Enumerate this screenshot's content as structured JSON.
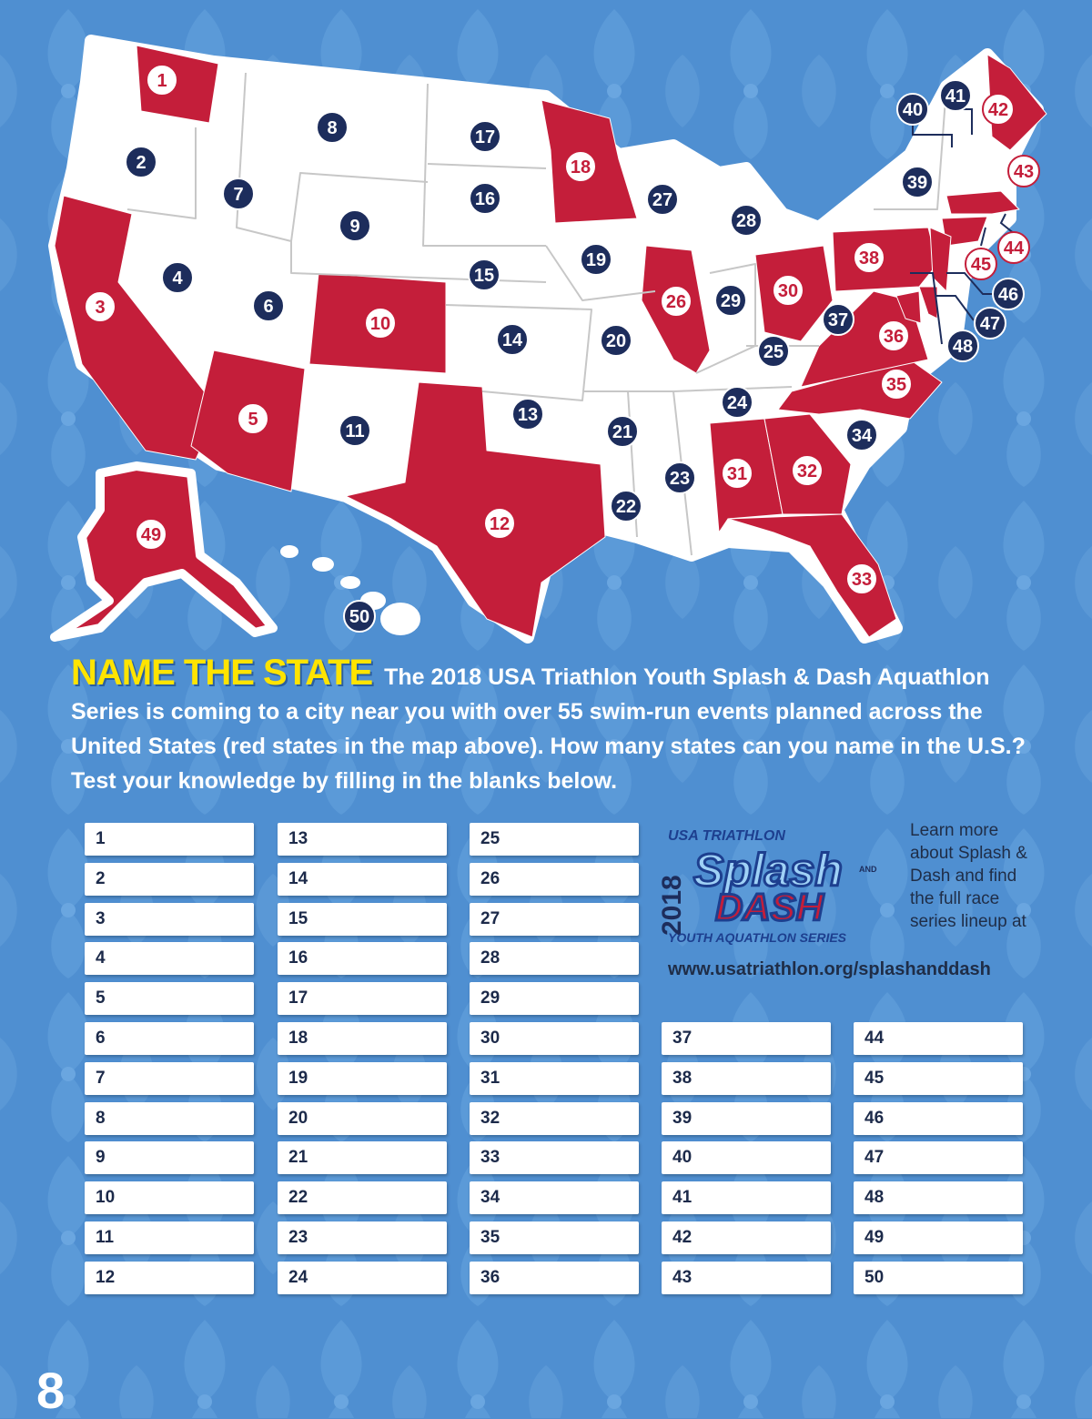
{
  "colors": {
    "background": "#4f8fd1",
    "red_state": "#c41e3a",
    "white_state": "#ffffff",
    "marker_dark": "#1d2d5c",
    "headline": "#ffe400"
  },
  "map": {
    "markers": [
      {
        "n": "1",
        "type": "red"
      },
      {
        "n": "2",
        "type": "white"
      },
      {
        "n": "3",
        "type": "red"
      },
      {
        "n": "4",
        "type": "white"
      },
      {
        "n": "5",
        "type": "red"
      },
      {
        "n": "6",
        "type": "white"
      },
      {
        "n": "7",
        "type": "white"
      },
      {
        "n": "8",
        "type": "white"
      },
      {
        "n": "9",
        "type": "white"
      },
      {
        "n": "10",
        "type": "red"
      },
      {
        "n": "11",
        "type": "white"
      },
      {
        "n": "12",
        "type": "red"
      },
      {
        "n": "13",
        "type": "white"
      },
      {
        "n": "14",
        "type": "white"
      },
      {
        "n": "15",
        "type": "white"
      },
      {
        "n": "16",
        "type": "white"
      },
      {
        "n": "17",
        "type": "white"
      },
      {
        "n": "18",
        "type": "red"
      },
      {
        "n": "19",
        "type": "white"
      },
      {
        "n": "20",
        "type": "white"
      },
      {
        "n": "21",
        "type": "white"
      },
      {
        "n": "22",
        "type": "white"
      },
      {
        "n": "23",
        "type": "white"
      },
      {
        "n": "24",
        "type": "white"
      },
      {
        "n": "25",
        "type": "white"
      },
      {
        "n": "26",
        "type": "red"
      },
      {
        "n": "27",
        "type": "white"
      },
      {
        "n": "28",
        "type": "white"
      },
      {
        "n": "29",
        "type": "white"
      },
      {
        "n": "30",
        "type": "red"
      },
      {
        "n": "31",
        "type": "red"
      },
      {
        "n": "32",
        "type": "red"
      },
      {
        "n": "33",
        "type": "red"
      },
      {
        "n": "34",
        "type": "white"
      },
      {
        "n": "35",
        "type": "red"
      },
      {
        "n": "36",
        "type": "red"
      },
      {
        "n": "37",
        "type": "white"
      },
      {
        "n": "38",
        "type": "red"
      },
      {
        "n": "39",
        "type": "white"
      },
      {
        "n": "40",
        "type": "white"
      },
      {
        "n": "41",
        "type": "white"
      },
      {
        "n": "42",
        "type": "red"
      },
      {
        "n": "43",
        "type": "red"
      },
      {
        "n": "44",
        "type": "red"
      },
      {
        "n": "45",
        "type": "red"
      },
      {
        "n": "46",
        "type": "white"
      },
      {
        "n": "47",
        "type": "white"
      },
      {
        "n": "48",
        "type": "white"
      },
      {
        "n": "49",
        "type": "red"
      },
      {
        "n": "50",
        "type": "white"
      }
    ]
  },
  "heading": {
    "title": "NAME THE STATE",
    "body": "The 2018 USA Triathlon Youth Splash & Dash Aquathlon Series is coming to a city near you with over 55 swim-run events planned across the United States (red states in the map above). How many states can you name in the U.S.? Test your knowledge by filling in the blanks below."
  },
  "blanks": [
    "1",
    "2",
    "3",
    "4",
    "5",
    "6",
    "7",
    "8",
    "9",
    "10",
    "11",
    "12",
    "13",
    "14",
    "15",
    "16",
    "17",
    "18",
    "19",
    "20",
    "21",
    "22",
    "23",
    "24",
    "25",
    "26",
    "27",
    "28",
    "29",
    "30",
    "31",
    "32",
    "33",
    "34",
    "35",
    "36",
    "37",
    "38",
    "39",
    "40",
    "41",
    "42",
    "43",
    "44",
    "45",
    "46",
    "47",
    "48",
    "49",
    "50"
  ],
  "logo": {
    "org": "USA TRIATHLON",
    "year": "2018",
    "word1": "Splash",
    "and": "AND",
    "word2": "DASH",
    "series": "YOUTH AQUATHLON SERIES"
  },
  "promo": {
    "text": "Learn more about Splash & Dash and find the full race series lineup at",
    "url": "www.usatriathlon.org/splashanddash"
  },
  "page_number": "8"
}
